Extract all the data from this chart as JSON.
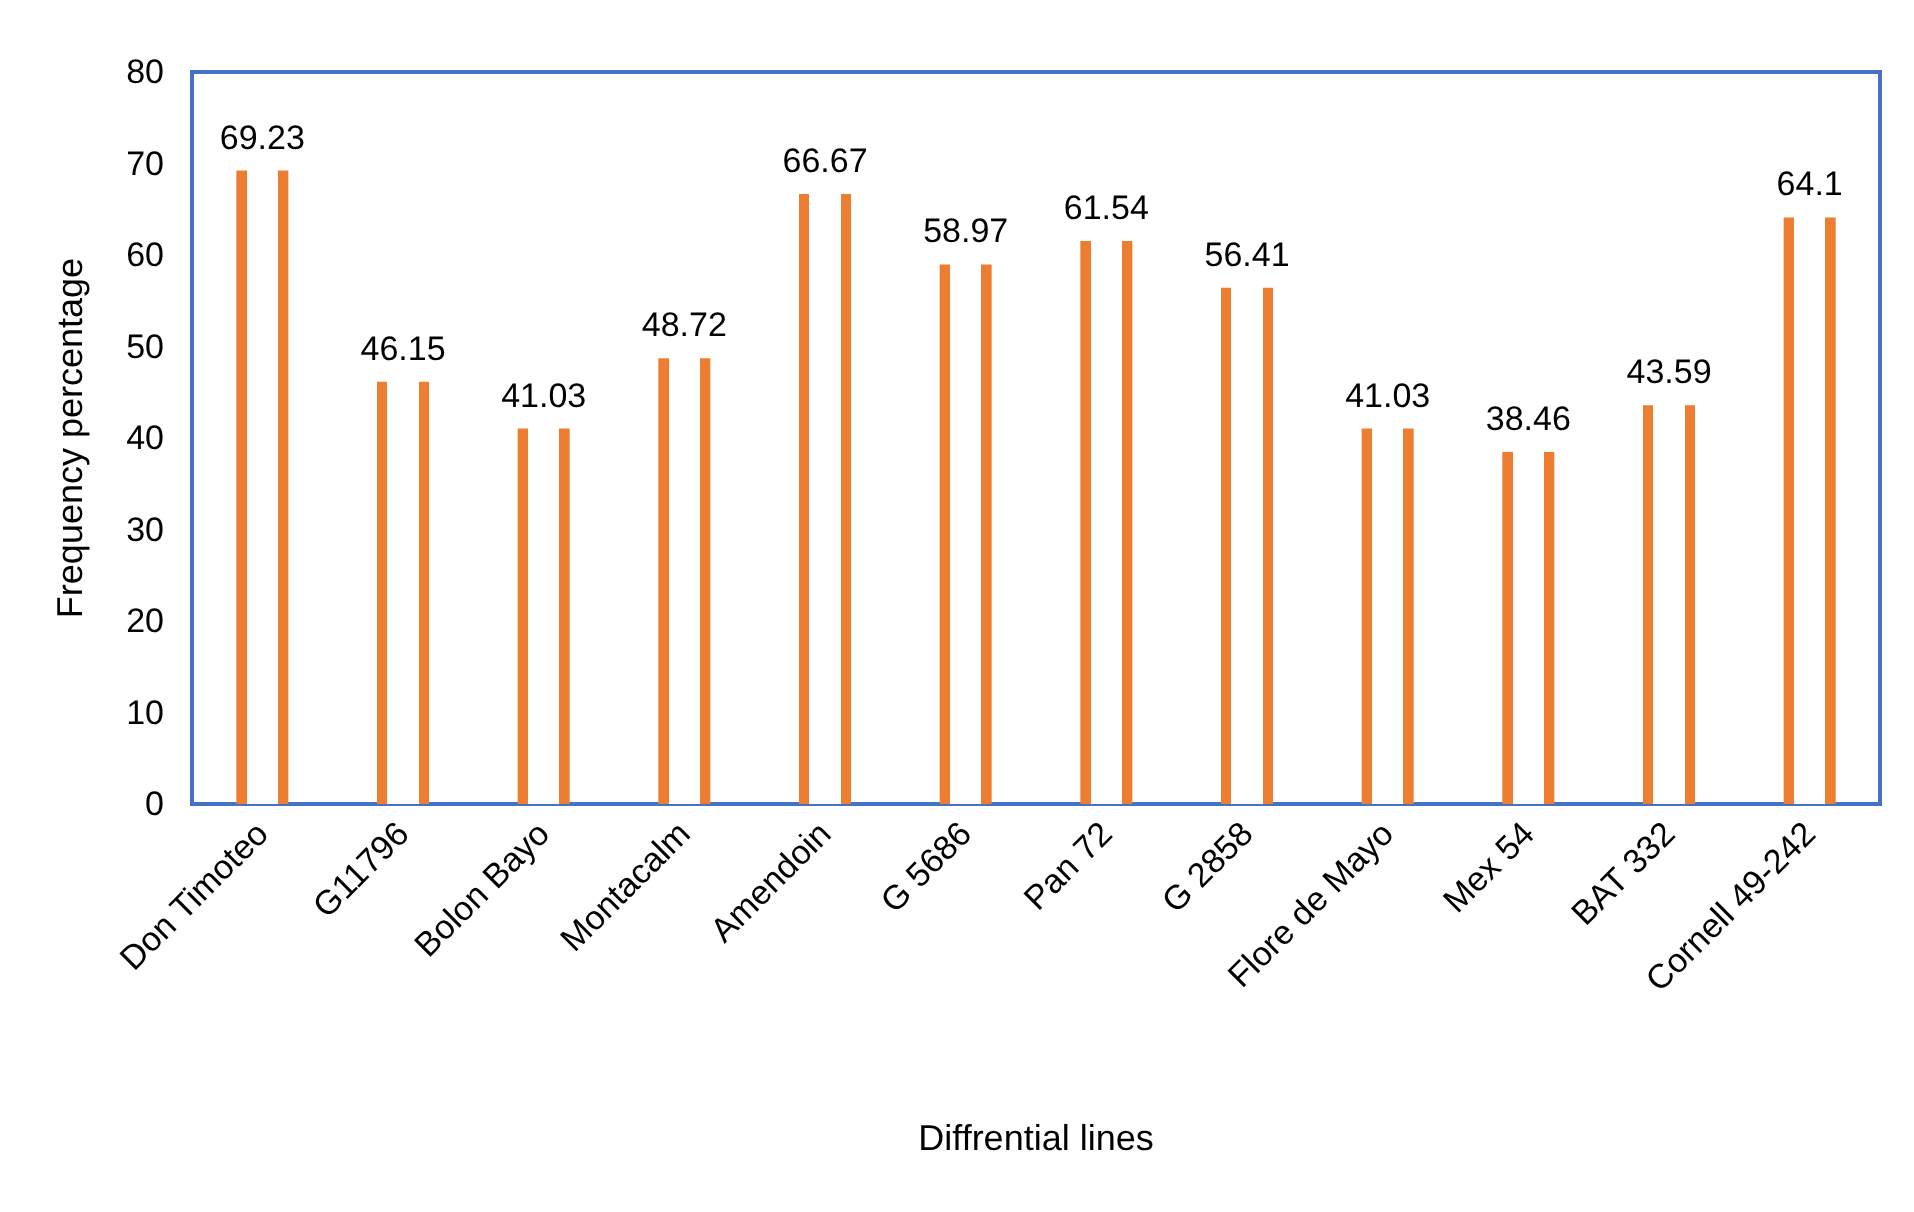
{
  "chart_data": {
    "type": "bar",
    "categories": [
      "Don Timoteo",
      "G11796",
      "Bolon Bayo",
      "Montacalm",
      "Amendoin",
      "G 5686",
      "Pan 72",
      "G 2858",
      "Flore de Mayo",
      "Mex 54",
      "BAT 332",
      "Cornell 49-242"
    ],
    "values": [
      69.23,
      46.15,
      41.03,
      48.72,
      66.67,
      58.97,
      61.54,
      56.41,
      41.03,
      38.46,
      43.59,
      64.1
    ],
    "color": "#ed7d31",
    "xlabel": "Diffrential lines",
    "ylabel": "Frequency percentage",
    "ylim": [
      0,
      80
    ],
    "yticks": [
      0,
      10,
      20,
      30,
      40,
      50,
      60,
      70,
      80
    ],
    "data_labels": true,
    "grid": false
  }
}
